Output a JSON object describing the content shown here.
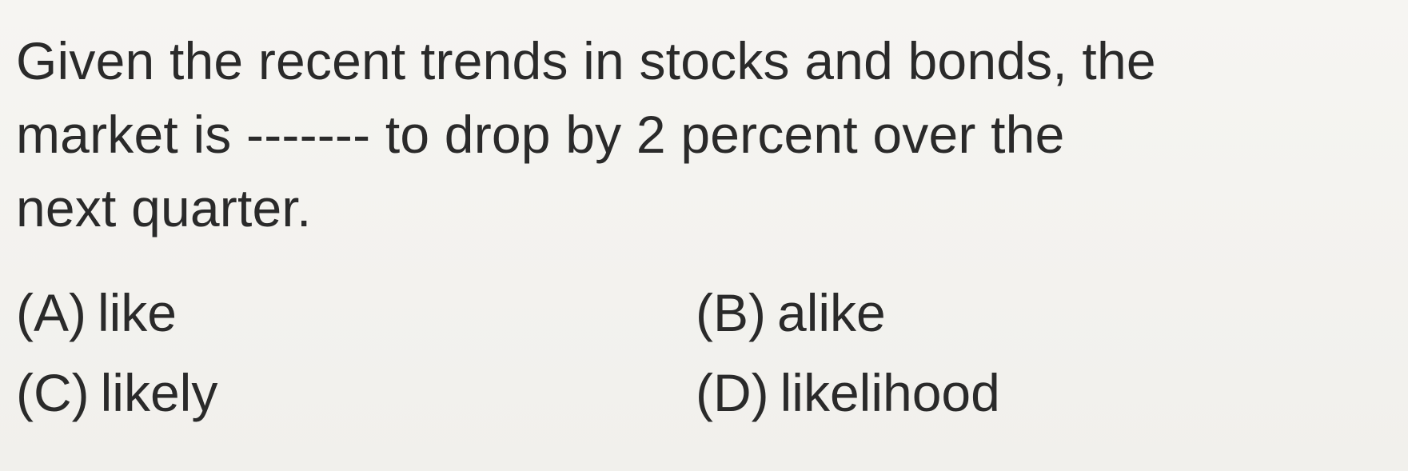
{
  "question": {
    "lines": [
      "Given the recent trends in stocks and bonds, the",
      "market is ------- to drop by 2 percent over the",
      "next quarter."
    ]
  },
  "options": [
    {
      "letter": "(A)",
      "text": "like"
    },
    {
      "letter": "(B)",
      "text": "alike"
    },
    {
      "letter": "(C)",
      "text": "likely"
    },
    {
      "letter": "(D)",
      "text": "likelihood"
    }
  ]
}
